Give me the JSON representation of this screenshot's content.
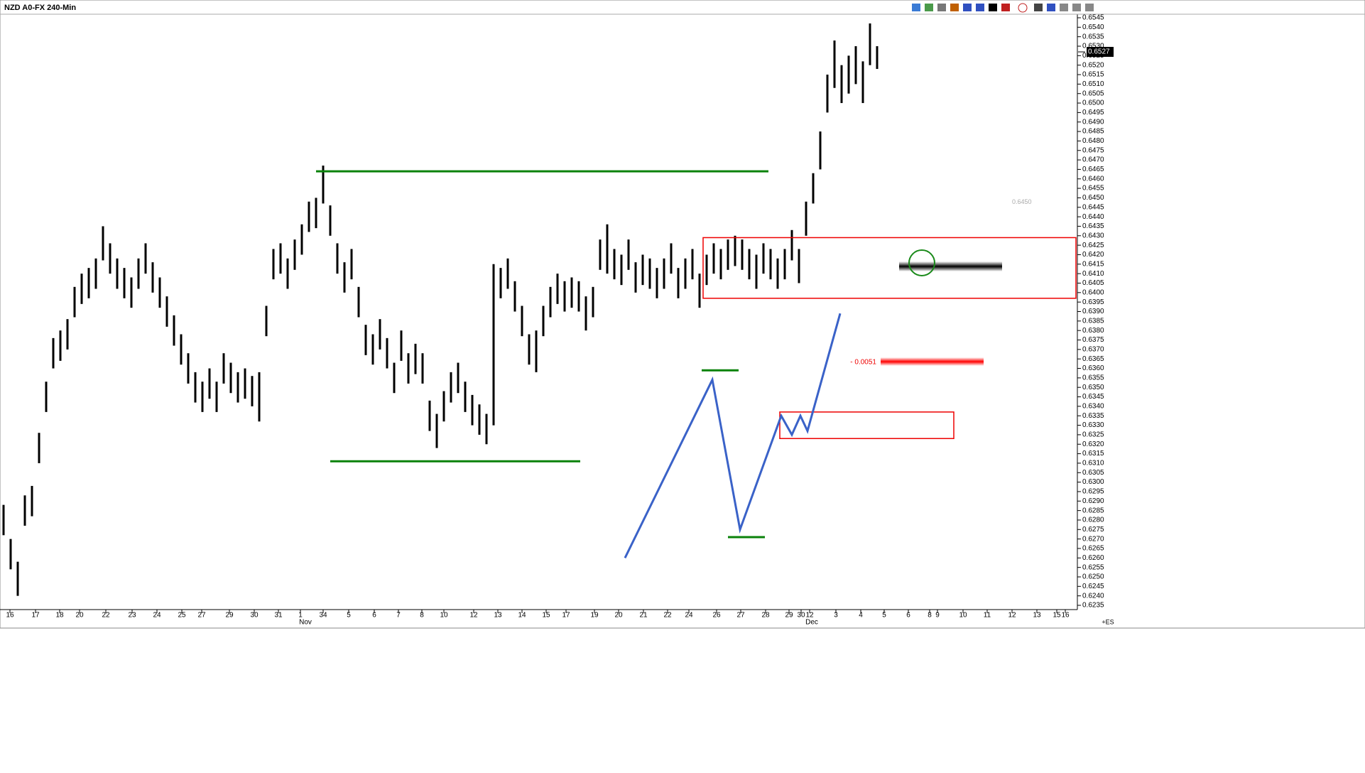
{
  "chart_data": {
    "type": "ohlc",
    "title": "NZD A0-FX 240-Min",
    "color": "#000000",
    "high": [
      0.6288,
      0.627,
      0.6258,
      0.6293,
      0.6298,
      0.6326,
      0.6353,
      0.6376,
      0.638,
      0.6386,
      0.6403,
      0.641,
      0.6413,
      0.6418,
      0.6435,
      0.6426,
      0.6418,
      0.6413,
      0.6408,
      0.6418,
      0.6426,
      0.6416,
      0.6408,
      0.6398,
      0.6388,
      0.6378,
      0.6368,
      0.6358,
      0.6353,
      0.636,
      0.6353,
      0.6368,
      0.6363,
      0.6358,
      0.636,
      0.6356,
      0.6358,
      0.6393,
      0.6423,
      0.6426,
      0.6418,
      0.6428,
      0.6436,
      0.6448,
      0.645,
      0.6467,
      0.6446,
      0.6426,
      0.6416,
      0.6423,
      0.6403,
      0.6383,
      0.6378,
      0.6386,
      0.6376,
      0.6363,
      0.638,
      0.6368,
      0.6373,
      0.6368,
      0.6343,
      0.6336,
      0.6348,
      0.6358,
      0.6363,
      0.6353,
      0.6346,
      0.6341,
      0.6336,
      0.6415,
      0.6413,
      0.6418,
      0.6406,
      0.6393,
      0.6378,
      0.638,
      0.6393,
      0.6403,
      0.641,
      0.6406,
      0.6408,
      0.6406,
      0.6398,
      0.6403,
      0.6428,
      0.6436,
      0.6423,
      0.642,
      0.6428,
      0.6416,
      0.642,
      0.6418,
      0.6413,
      0.6418,
      0.6426,
      0.6413,
      0.6418,
      0.6423,
      0.641,
      0.642,
      0.6426,
      0.6423,
      0.6428,
      0.643,
      0.6428,
      0.6423,
      0.642,
      0.6426,
      0.6423,
      0.6418,
      0.6423,
      0.6433,
      0.6423,
      0.6448,
      0.6463,
      0.6485,
      0.6515,
      0.6533,
      0.652,
      0.6525,
      0.653,
      0.6522,
      0.6542,
      0.653
    ],
    "low": [
      0.6272,
      0.6254,
      0.624,
      0.6277,
      0.6282,
      0.631,
      0.6337,
      0.636,
      0.6364,
      0.637,
      0.6387,
      0.6394,
      0.6397,
      0.6402,
      0.6417,
      0.641,
      0.6402,
      0.6397,
      0.6392,
      0.6402,
      0.641,
      0.64,
      0.6392,
      0.6382,
      0.6372,
      0.6362,
      0.6352,
      0.6342,
      0.6337,
      0.6344,
      0.6337,
      0.6352,
      0.6347,
      0.6342,
      0.6344,
      0.634,
      0.6332,
      0.6377,
      0.6407,
      0.641,
      0.6402,
      0.6412,
      0.642,
      0.6432,
      0.6434,
      0.6447,
      0.643,
      0.641,
      0.64,
      0.6407,
      0.6387,
      0.6367,
      0.6362,
      0.637,
      0.636,
      0.6347,
      0.6364,
      0.6352,
      0.6357,
      0.6352,
      0.6327,
      0.6318,
      0.6332,
      0.6342,
      0.6347,
      0.6337,
      0.633,
      0.6325,
      0.632,
      0.633,
      0.6397,
      0.6402,
      0.639,
      0.6377,
      0.6362,
      0.6358,
      0.6377,
      0.6387,
      0.6394,
      0.639,
      0.6392,
      0.639,
      0.638,
      0.6387,
      0.6412,
      0.641,
      0.6407,
      0.6404,
      0.6412,
      0.64,
      0.6404,
      0.6402,
      0.6397,
      0.6402,
      0.641,
      0.6397,
      0.6402,
      0.6407,
      0.6392,
      0.6404,
      0.641,
      0.6407,
      0.6412,
      0.6414,
      0.6412,
      0.6407,
      0.6402,
      0.641,
      0.6407,
      0.6402,
      0.6407,
      0.6417,
      0.6405,
      0.643,
      0.6447,
      0.6465,
      0.6495,
      0.6508,
      0.65,
      0.6505,
      0.651,
      0.65,
      0.652,
      0.6518
    ],
    "x_labels": [
      "16",
      "17",
      "18",
      "20",
      "22",
      "23",
      "24",
      "25",
      "27",
      "29",
      "30",
      "31",
      "1",
      "34",
      "5",
      "6",
      "7",
      "8",
      "10",
      "12",
      "13",
      "14",
      "15",
      "17",
      "19",
      "20",
      "21",
      "22",
      "24",
      "26",
      "27",
      "28",
      "29",
      "30",
      "12",
      "3",
      "4",
      "5",
      "6",
      "8",
      "9",
      "10",
      "11",
      "12",
      "13",
      "15",
      "16"
    ],
    "months": [
      "Nov",
      "Dec"
    ],
    "ylim": [
      0.6235,
      0.6545
    ],
    "yticks": [
      0.6545,
      {
        "value": 0.654,
        "label": "0.6540"
      },
      0.6535,
      {
        "value": 0.653,
        "label": "0.6530"
      },
      0.6525,
      {
        "value": 0.652,
        "label": "0.6520"
      },
      0.6515,
      {
        "value": 0.651,
        "label": "0.6510"
      },
      0.6505,
      {
        "value": 0.65,
        "label": "0.6500"
      },
      0.6495,
      {
        "value": 0.649,
        "label": "0.6490"
      },
      0.6485,
      {
        "value": 0.648,
        "label": "0.6480"
      },
      0.6475,
      {
        "value": 0.647,
        "label": "0.6470"
      },
      0.6465,
      {
        "value": 0.646,
        "label": "0.6460"
      },
      0.6455,
      {
        "value": 0.645,
        "label": "0.6450"
      },
      0.6445,
      {
        "value": 0.644,
        "label": "0.6440"
      },
      0.6435,
      {
        "value": 0.643,
        "label": "0.6430"
      },
      0.6425,
      {
        "value": 0.642,
        "label": "0.6420"
      },
      0.6415,
      {
        "value": 0.641,
        "label": "0.6410"
      },
      0.6405,
      {
        "value": 0.64,
        "label": "0.6400"
      },
      0.6395,
      {
        "value": 0.639,
        "label": "0.6390"
      },
      0.6385,
      {
        "value": 0.638,
        "label": "0.6380"
      },
      0.6375,
      {
        "value": 0.637,
        "label": "0.6370"
      },
      0.6365,
      {
        "value": 0.636,
        "label": "0.6360"
      },
      0.6355,
      {
        "value": 0.635,
        "label": "0.6350"
      },
      0.6345,
      {
        "value": 0.634,
        "label": "0.6340"
      },
      0.6335,
      {
        "value": 0.633,
        "label": "0.6330"
      },
      0.6325,
      {
        "value": 0.632,
        "label": "0.6320"
      },
      0.6315,
      {
        "value": 0.631,
        "label": "0.6310"
      },
      0.6305,
      {
        "value": 0.63,
        "label": "0.6300"
      },
      0.6295,
      {
        "value": 0.629,
        "label": "0.6290"
      },
      0.6285,
      {
        "value": 0.628,
        "label": "0.6280"
      },
      0.6275,
      {
        "value": 0.627,
        "label": "0.6270"
      },
      0.6265,
      {
        "value": 0.626,
        "label": "0.6260"
      },
      0.6255,
      {
        "value": 0.625,
        "label": "0.6250"
      },
      0.6245,
      {
        "value": 0.624,
        "label": "0.6240"
      },
      0.6235
    ],
    "last_price": {
      "value": 0.6527,
      "label": "0.6527"
    },
    "level_label": {
      "value": 0.645,
      "label": "0.6450"
    },
    "range_label": "- 0.0051",
    "footer": "+ES",
    "levels": [
      0.6464,
      0.6311,
      0.6359,
      0.6271
    ],
    "zones": [
      [
        0.6429,
        0.6397
      ],
      [
        0.6337,
        0.6323
      ]
    ],
    "wave": [
      0.626,
      0.6354,
      0.6275,
      0.6335,
      0.6325,
      0.6335,
      0.6327,
      0.6389
    ]
  }
}
